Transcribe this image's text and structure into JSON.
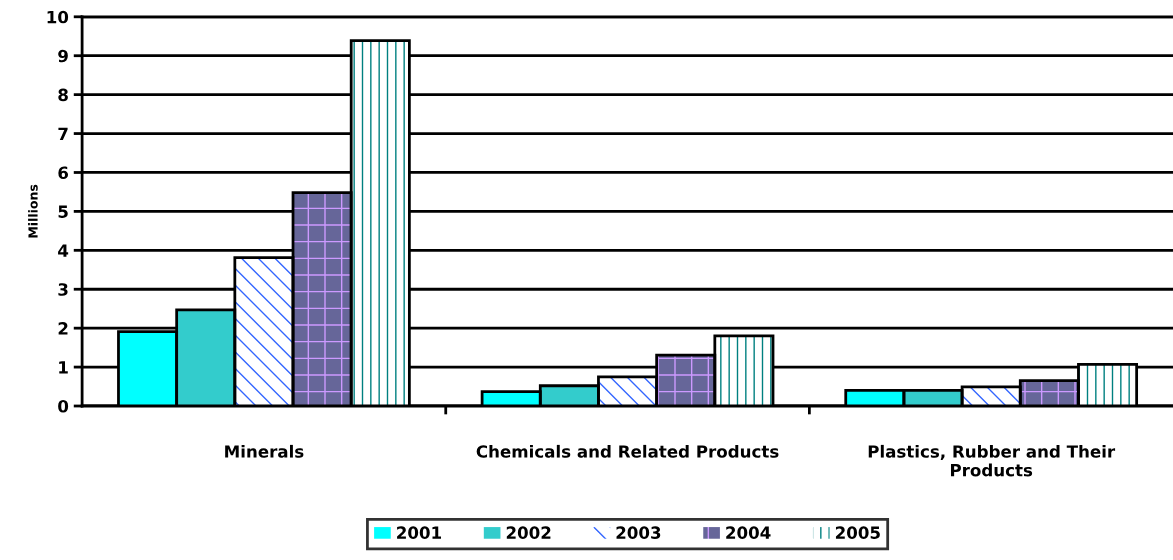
{
  "chart_data": {
    "type": "bar",
    "ylabel": "Millions",
    "categories": [
      "Minerals",
      "Chemicals and Related Products",
      "Plastics, Rubber and Their\nProducts"
    ],
    "series": [
      {
        "name": "2001",
        "color": "#00ffff",
        "values": [
          1.91,
          0.37,
          0.4
        ]
      },
      {
        "name": "2002",
        "color": "#33cccc",
        "values": [
          2.47,
          0.52,
          0.4
        ]
      },
      {
        "name": "2003",
        "color": "#3366ff",
        "values": [
          3.81,
          0.75,
          0.49
        ]
      },
      {
        "name": "2004",
        "color": "#666699",
        "values": [
          5.48,
          1.31,
          0.65
        ]
      },
      {
        "name": "2005",
        "color": "#008080",
        "values": [
          9.39,
          1.8,
          1.07
        ]
      }
    ],
    "ylim": [
      0,
      10
    ],
    "yticks": [
      0,
      1,
      2,
      3,
      4,
      5,
      6,
      7,
      8,
      9,
      10
    ],
    "grid": "y",
    "legend": "bottom"
  }
}
